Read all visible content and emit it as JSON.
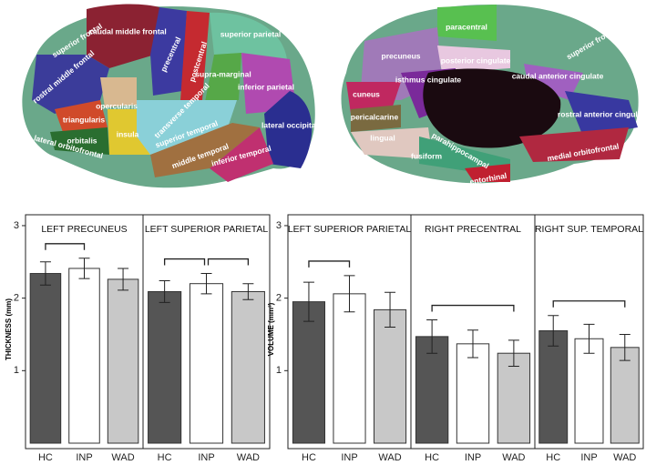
{
  "brain": {
    "lateral_labels": [
      "superior frontal",
      "caudal middle frontal",
      "rostral middle frontal",
      "precentral",
      "postcentral",
      "superior parietal",
      "supra-marginal",
      "inferior parietal",
      "opercularis",
      "triangularis",
      "orbitalis",
      "insula",
      "transverse temporal",
      "superior temporal",
      "middle temporal",
      "inferior temporal",
      "lateral occipital",
      "lateral orbitofrontal"
    ],
    "medial_labels": [
      "paracentral",
      "precuneus",
      "posterior cingulate",
      "superior frontal",
      "isthmus cingulate",
      "caudal anterior cingulate",
      "cuneus",
      "rostral anterior cingulate",
      "pericalcarine",
      "lingual",
      "parahippocampal",
      "fusiform",
      "entorhinal",
      "medial orbitofrontal"
    ]
  },
  "chart_data": [
    {
      "type": "bar",
      "title": "LEFT PRECUNEUS",
      "ylabel": "THICKNESS (mm)",
      "categories": [
        "HC",
        "INP",
        "WAD"
      ],
      "values": [
        2.34,
        2.41,
        2.26
      ],
      "errors": [
        0.16,
        0.14,
        0.15
      ],
      "colors": [
        "#555555",
        "#ffffff",
        "#c8c8c8"
      ],
      "ylim": [
        0,
        3.15
      ],
      "yticks": [
        1,
        2,
        3
      ],
      "brackets": [
        [
          0,
          1
        ]
      ]
    },
    {
      "type": "bar",
      "title": "LEFT SUPERIOR PARIETAL",
      "categories": [
        "HC",
        "INP",
        "WAD"
      ],
      "values": [
        2.09,
        2.2,
        2.09
      ],
      "errors": [
        0.15,
        0.14,
        0.11
      ],
      "colors": [
        "#555555",
        "#ffffff",
        "#c8c8c8"
      ],
      "ylim": [
        0,
        3.15
      ],
      "brackets": [
        [
          0,
          1
        ],
        [
          1,
          2
        ]
      ]
    },
    {
      "type": "bar",
      "title": "LEFT SUPERIOR PARIETAL",
      "ylabel": "VOLUME (mm³)",
      "categories": [
        "HC",
        "INP",
        "WAD"
      ],
      "values": [
        1.95,
        2.06,
        1.84
      ],
      "errors": [
        0.27,
        0.25,
        0.24
      ],
      "colors": [
        "#555555",
        "#ffffff",
        "#c8c8c8"
      ],
      "ylim": [
        0,
        3.15
      ],
      "yticks": [
        1,
        2,
        3
      ],
      "brackets": [
        [
          0,
          1
        ]
      ]
    },
    {
      "type": "bar",
      "title": "RIGHT PRECENTRAL",
      "categories": [
        "HC",
        "INP",
        "WAD"
      ],
      "values": [
        1.47,
        1.37,
        1.24
      ],
      "errors": [
        0.23,
        0.19,
        0.18
      ],
      "colors": [
        "#555555",
        "#ffffff",
        "#c8c8c8"
      ],
      "ylim": [
        0,
        3.15
      ],
      "brackets": [
        [
          0,
          2
        ]
      ]
    },
    {
      "type": "bar",
      "title": "RIGHT SUP. TEMPORAL",
      "categories": [
        "HC",
        "INP",
        "WAD"
      ],
      "values": [
        1.55,
        1.44,
        1.32
      ],
      "errors": [
        0.21,
        0.2,
        0.18
      ],
      "colors": [
        "#555555",
        "#ffffff",
        "#c8c8c8"
      ],
      "ylim": [
        0,
        3.15
      ],
      "brackets": [
        [
          0,
          2
        ]
      ]
    }
  ]
}
